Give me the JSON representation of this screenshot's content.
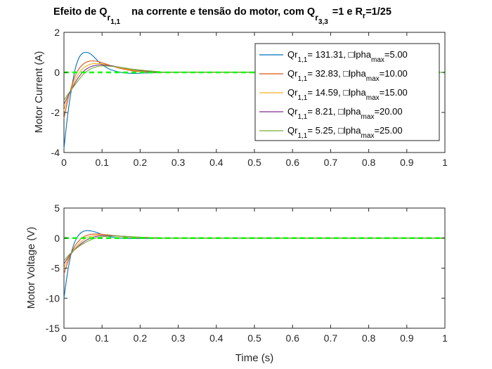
{
  "title": {
    "p1": "Efeito de Q",
    "s1": "r",
    "s1b": "1,1",
    "p2": "na corrente e tensão do motor, com Q",
    "s2": "r",
    "s2b": "3,3",
    "p3": "=1 e R",
    "s3": "r",
    "p4": "=1/25"
  },
  "chart_data": [
    {
      "type": "line",
      "ylabel": "Motor Current (A)",
      "xlabel": "",
      "xlim": [
        0,
        1
      ],
      "ylim": [
        -4,
        2
      ],
      "xticks": [
        "0",
        "0.1",
        "0.2",
        "0.3",
        "0.4",
        "0.5",
        "0.6",
        "0.7",
        "0.8",
        "0.9",
        "1"
      ],
      "yticks": [
        "2",
        "0",
        "-2",
        "-4"
      ],
      "grid": false,
      "legend_position": "top-right",
      "series": [
        {
          "color": "#0072BD",
          "x": [
            0,
            0.01,
            0.02,
            0.03,
            0.04,
            0.05,
            0.06,
            0.07,
            0.08,
            0.09,
            0.1,
            0.12,
            0.14,
            0.16,
            0.18,
            0.2,
            0.25,
            0.3,
            1.0
          ],
          "y": [
            -3.8,
            -2.1,
            -0.8,
            0.2,
            0.75,
            0.97,
            1.0,
            0.92,
            0.75,
            0.55,
            0.38,
            0.16,
            0.04,
            -0.03,
            -0.05,
            -0.04,
            -0.01,
            0.0,
            0.0
          ]
        },
        {
          "color": "#D95319",
          "x": [
            0,
            0.01,
            0.02,
            0.03,
            0.04,
            0.05,
            0.06,
            0.07,
            0.08,
            0.09,
            0.1,
            0.12,
            0.14,
            0.16,
            0.18,
            0.2,
            0.25,
            0.3,
            1.0
          ],
          "y": [
            -2.3,
            -1.4,
            -0.7,
            -0.15,
            0.2,
            0.4,
            0.52,
            0.57,
            0.57,
            0.54,
            0.48,
            0.36,
            0.24,
            0.15,
            0.08,
            0.04,
            0.0,
            0.0,
            0.0
          ]
        },
        {
          "color": "#EDB120",
          "x": [
            0,
            0.01,
            0.02,
            0.03,
            0.04,
            0.05,
            0.06,
            0.07,
            0.08,
            0.09,
            0.1,
            0.12,
            0.14,
            0.16,
            0.18,
            0.2,
            0.25,
            0.3,
            1.0
          ],
          "y": [
            -1.9,
            -1.3,
            -0.8,
            -0.35,
            -0.02,
            0.2,
            0.33,
            0.41,
            0.44,
            0.44,
            0.42,
            0.35,
            0.26,
            0.18,
            0.12,
            0.07,
            0.02,
            0.0,
            0.0
          ]
        },
        {
          "color": "#7E2F8E",
          "x": [
            0,
            0.01,
            0.02,
            0.03,
            0.04,
            0.05,
            0.06,
            0.07,
            0.08,
            0.09,
            0.1,
            0.12,
            0.14,
            0.16,
            0.18,
            0.2,
            0.25,
            0.3,
            1.0
          ],
          "y": [
            -1.6,
            -1.2,
            -0.85,
            -0.5,
            -0.2,
            0.03,
            0.18,
            0.28,
            0.34,
            0.37,
            0.37,
            0.34,
            0.28,
            0.21,
            0.15,
            0.1,
            0.03,
            0.01,
            0.0
          ]
        },
        {
          "color": "#77AC30",
          "x": [
            0,
            0.01,
            0.02,
            0.03,
            0.04,
            0.05,
            0.06,
            0.07,
            0.08,
            0.09,
            0.1,
            0.12,
            0.14,
            0.16,
            0.18,
            0.2,
            0.25,
            0.3,
            1.0
          ],
          "y": [
            -1.4,
            -1.1,
            -0.85,
            -0.6,
            -0.35,
            -0.12,
            0.05,
            0.17,
            0.25,
            0.3,
            0.32,
            0.31,
            0.27,
            0.22,
            0.16,
            0.12,
            0.04,
            0.01,
            0.0
          ]
        }
      ],
      "reference": {
        "color": "#00FF00",
        "y": 0,
        "style": "dashed"
      },
      "legend": [
        {
          "pre": "Qr",
          "sub": "1,1",
          "mid": "= 131.31, □lpha",
          "sub2": "max",
          "post": "=5.00"
        },
        {
          "pre": "Qr",
          "sub": "1,1",
          "mid": "= 32.83, □lpha",
          "sub2": "max",
          "post": "=10.00"
        },
        {
          "pre": "Qr",
          "sub": "1,1",
          "mid": "= 14.59, □lpha",
          "sub2": "max",
          "post": "=15.00"
        },
        {
          "pre": "Qr",
          "sub": "1,1",
          "mid": "= 8.21, □lpha",
          "sub2": "max",
          "post": "=20.00"
        },
        {
          "pre": "Qr",
          "sub": "1,1",
          "mid": "= 5.25, □lpha",
          "sub2": "max",
          "post": "=25.00"
        }
      ]
    },
    {
      "type": "line",
      "ylabel": "Motor Voltage (V)",
      "xlabel": "Time (s)",
      "xlim": [
        0,
        1
      ],
      "ylim": [
        -15,
        5
      ],
      "xticks": [
        "0",
        "0.1",
        "0.2",
        "0.3",
        "0.4",
        "0.5",
        "0.6",
        "0.7",
        "0.8",
        "0.9",
        "1"
      ],
      "yticks": [
        "5",
        "0",
        "-5",
        "-10",
        "-15"
      ],
      "grid": false,
      "series": [
        {
          "color": "#0072BD",
          "x": [
            0,
            0.01,
            0.02,
            0.03,
            0.04,
            0.05,
            0.06,
            0.07,
            0.08,
            0.09,
            0.1,
            0.12,
            0.14,
            0.16,
            0.18,
            0.2,
            0.25,
            0.3,
            1.0
          ],
          "y": [
            -10.0,
            -5.5,
            -2.3,
            -0.4,
            0.6,
            1.1,
            1.25,
            1.2,
            1.05,
            0.85,
            0.6,
            0.25,
            0.05,
            -0.05,
            -0.08,
            -0.06,
            -0.02,
            0.0,
            0.0
          ]
        },
        {
          "color": "#D95319",
          "x": [
            0,
            0.01,
            0.02,
            0.03,
            0.04,
            0.05,
            0.06,
            0.07,
            0.08,
            0.09,
            0.1,
            0.12,
            0.14,
            0.16,
            0.18,
            0.2,
            0.25,
            0.3,
            1.0
          ],
          "y": [
            -6.0,
            -4.0,
            -2.4,
            -1.2,
            -0.4,
            0.15,
            0.45,
            0.62,
            0.68,
            0.68,
            0.64,
            0.5,
            0.34,
            0.21,
            0.12,
            0.06,
            0.01,
            0.0,
            0.0
          ]
        },
        {
          "color": "#EDB120",
          "x": [
            0,
            0.01,
            0.02,
            0.03,
            0.04,
            0.05,
            0.06,
            0.07,
            0.08,
            0.09,
            0.1,
            0.12,
            0.14,
            0.16,
            0.18,
            0.2,
            0.25,
            0.3,
            1.0
          ],
          "y": [
            -5.0,
            -3.6,
            -2.5,
            -1.6,
            -0.9,
            -0.35,
            0.05,
            0.3,
            0.45,
            0.52,
            0.54,
            0.48,
            0.37,
            0.26,
            0.17,
            0.1,
            0.03,
            0.01,
            0.0
          ]
        },
        {
          "color": "#7E2F8E",
          "x": [
            0,
            0.01,
            0.02,
            0.03,
            0.04,
            0.05,
            0.06,
            0.07,
            0.08,
            0.09,
            0.1,
            0.12,
            0.14,
            0.16,
            0.18,
            0.2,
            0.25,
            0.3,
            1.0
          ],
          "y": [
            -4.3,
            -3.3,
            -2.5,
            -1.8,
            -1.2,
            -0.7,
            -0.3,
            0.0,
            0.2,
            0.33,
            0.4,
            0.42,
            0.36,
            0.28,
            0.2,
            0.13,
            0.04,
            0.01,
            0.0
          ]
        },
        {
          "color": "#77AC30",
          "x": [
            0,
            0.01,
            0.02,
            0.03,
            0.04,
            0.05,
            0.06,
            0.07,
            0.08,
            0.09,
            0.1,
            0.12,
            0.14,
            0.16,
            0.18,
            0.2,
            0.25,
            0.3,
            1.0
          ],
          "y": [
            -3.8,
            -3.0,
            -2.4,
            -1.85,
            -1.35,
            -0.95,
            -0.6,
            -0.3,
            -0.07,
            0.1,
            0.22,
            0.33,
            0.33,
            0.28,
            0.21,
            0.15,
            0.05,
            0.01,
            0.0
          ]
        }
      ],
      "reference": {
        "color": "#00FF00",
        "y": 0,
        "style": "dashed"
      }
    }
  ]
}
